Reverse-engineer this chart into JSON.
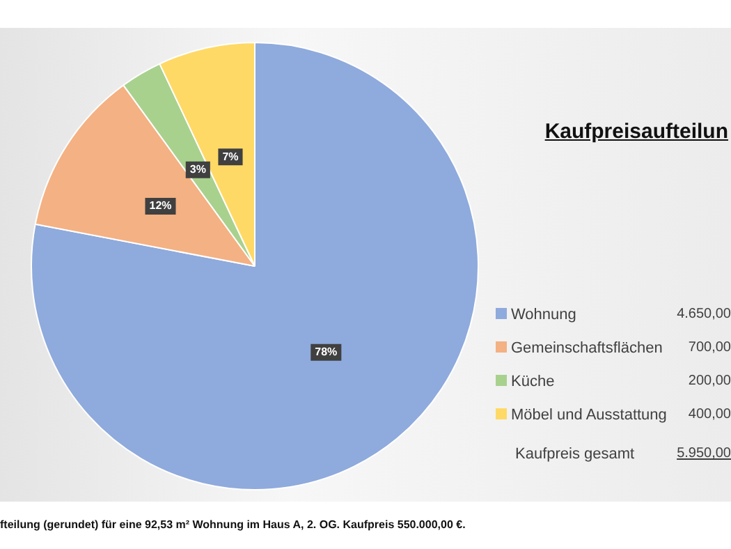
{
  "chart_data": {
    "type": "pie",
    "title": "Kaufpreisaufteilun",
    "categories": [
      "Wohnung",
      "Gemeinschaftsflächen",
      "Küche",
      "Möbel und Ausstattung"
    ],
    "values": [
      78,
      12,
      3,
      7
    ],
    "colors": [
      "#8faadc",
      "#f4b183",
      "#a9d18e",
      "#ffd966"
    ],
    "value_labels": [
      "78%",
      "12%",
      "3%",
      "7%"
    ],
    "legend": "right",
    "annotations": [
      "4.650,00",
      "700,00",
      "200,00",
      "400,00",
      "Kaufpreis gesamt",
      "5.950,00",
      "fteilung (gerundet) für eine 92,53 m² Wohnung im Haus A, 2. OG. Kaufpreis 550.000,00 €."
    ]
  }
}
